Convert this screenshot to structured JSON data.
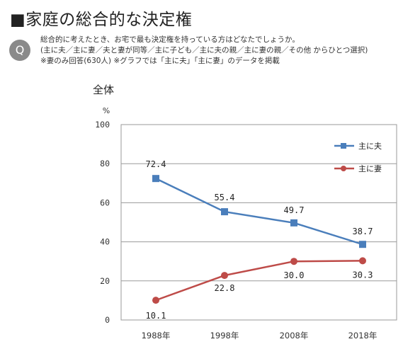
{
  "header": {
    "title": "■家庭の総合的な決定権",
    "q_badge": "Q",
    "question_lines": [
      "総合的に考えたとき、お宅で最も決定権を持っている方はどなたでしょうか。",
      "(主に夫／主に妻／夫と妻が同等／主に子ども／主に夫の親／主に妻の親／その他 からひとつ選択)",
      "※妻のみ回答(630人) ※グラフでは「主に夫」「主に妻」のデータを掲載"
    ]
  },
  "chart_data": {
    "type": "line",
    "title": "全体",
    "ylabel": "%",
    "categories": [
      "1988年",
      "1998年",
      "2008年",
      "2018年"
    ],
    "ylim": [
      0,
      100
    ],
    "yticks": [
      0,
      20,
      40,
      60,
      80,
      100
    ],
    "grid": true,
    "legend_position": "top-right",
    "series": [
      {
        "name": "主に夫",
        "color": "#4a7ebb",
        "marker": "square",
        "values": [
          72.4,
          55.4,
          49.7,
          38.7
        ],
        "labels": [
          "72.4",
          "55.4",
          "49.7",
          "38.7"
        ]
      },
      {
        "name": "主に妻",
        "color": "#be4b48",
        "marker": "circle",
        "values": [
          10.1,
          22.8,
          30.0,
          30.3
        ],
        "labels": [
          "10.1",
          "22.8",
          "30.0",
          "30.3"
        ]
      }
    ]
  }
}
